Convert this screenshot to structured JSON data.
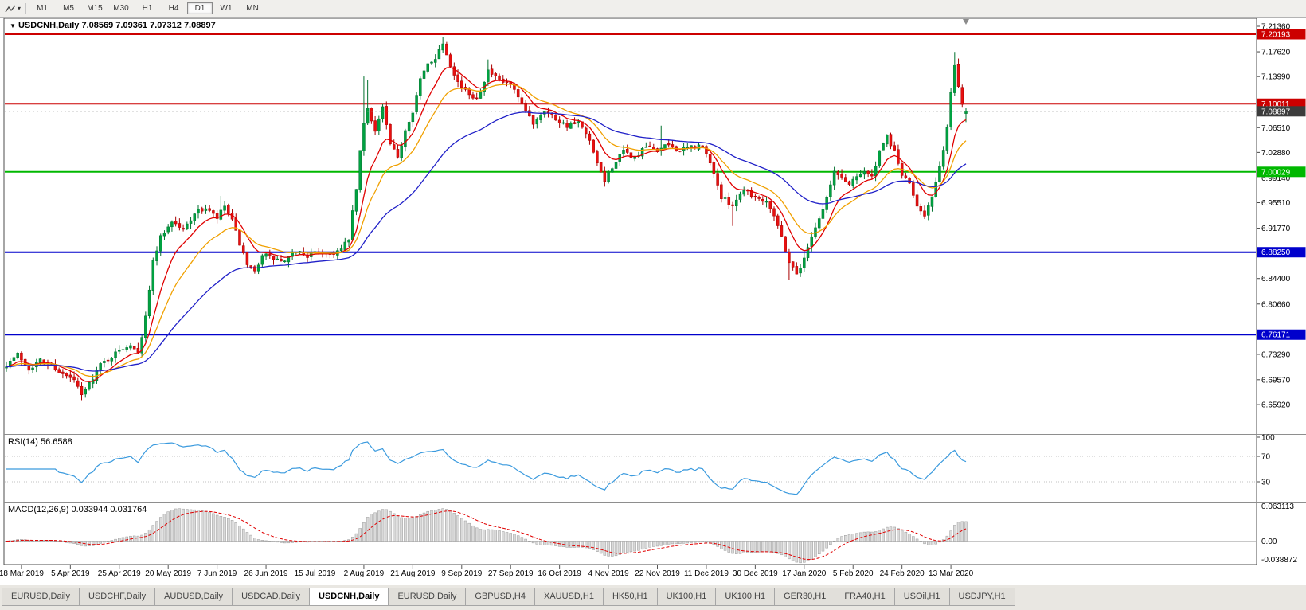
{
  "toolbar": {
    "timeframes": [
      "M1",
      "M5",
      "M15",
      "M30",
      "H1",
      "H4",
      "D1",
      "W1",
      "MN"
    ],
    "active_timeframe": "D1"
  },
  "chart": {
    "title": {
      "symbol_period": "USDCNH,Daily",
      "open": "7.08569",
      "high": "7.09361",
      "low": "7.07312",
      "close": "7.08897"
    },
    "y_axis_labels": [
      "7.21360",
      "7.17620",
      "7.13990",
      "7.06510",
      "7.02880",
      "6.99140",
      "6.95510",
      "6.91770",
      "6.84400",
      "6.80660",
      "6.73290",
      "6.69570",
      "6.65920"
    ],
    "x_axis_labels": [
      "18 Mar 2019",
      "5 Apr 2019",
      "25 Apr 2019",
      "20 May 2019",
      "7 Jun 2019",
      "26 Jun 2019",
      "15 Jul 2019",
      "2 Aug 2019",
      "21 Aug 2019",
      "9 Sep 2019",
      "27 Sep 2019",
      "16 Oct 2019",
      "4 Nov 2019",
      "22 Nov 2019",
      "11 Dec 2019",
      "30 Dec 2019",
      "17 Jan 2020",
      "5 Feb 2020",
      "24 Feb 2020",
      "13 Mar 2020"
    ]
  },
  "rsi_panel": {
    "label": "RSI(14)",
    "value_text": "56.6588",
    "axis_labels": [
      "100",
      "70",
      "30"
    ],
    "line_color": "#3a9ade"
  },
  "macd_panel": {
    "label": "MACD(12,26,9)",
    "values_text": "0.033944 0.031764",
    "axis_labels": [
      "0.063113",
      "0.00",
      "-0.038872"
    ],
    "histogram_color": "#dadada",
    "signal_color": "#e00000"
  },
  "tabs": {
    "items": [
      "EURUSD,Daily",
      "USDCHF,Daily",
      "AUDUSD,Daily",
      "USDCAD,Daily",
      "USDCNH,Daily",
      "EURUSD,Daily",
      "GBPUSD,H4",
      "XAUUSD,H1",
      "HK50,H1",
      "UK100,H1",
      "UK100,H1",
      "GER30,H1",
      "FRA40,H1",
      "USOil,H1",
      "USDJPY,H1"
    ],
    "active_index": 4
  },
  "icons": {
    "chart-tool-icon": "zigzag-line",
    "dropdown-caret-icon": "▾",
    "collapse-arrow-icon": "▼",
    "shift-marker-icon": "triangle-down"
  },
  "chart_data": {
    "type": "candlestick",
    "symbol": "USDCNH",
    "timeframe": "Daily",
    "bar_count": 256,
    "ylim": [
      6.6173,
      7.2241
    ],
    "x_tick_bar_index_start": 4,
    "x_tick_bar_step": 13,
    "last_bar": {
      "open": 7.08569,
      "high": 7.09361,
      "low": 7.07312,
      "close": 7.08897
    },
    "up_color": "#00a241",
    "up_stroke": "#00712d",
    "down_color": "#e81010",
    "down_stroke": "#a80000",
    "noise_seed": 7,
    "close_anchors": [
      [
        0,
        6.718
      ],
      [
        3,
        6.733
      ],
      [
        6,
        6.712
      ],
      [
        9,
        6.724
      ],
      [
        12,
        6.718
      ],
      [
        15,
        6.703
      ],
      [
        18,
        6.695
      ],
      [
        20,
        6.672
      ],
      [
        22,
        6.69
      ],
      [
        25,
        6.718
      ],
      [
        28,
        6.73
      ],
      [
        31,
        6.742
      ],
      [
        33,
        6.748
      ],
      [
        35,
        6.738
      ],
      [
        36,
        6.76
      ],
      [
        37,
        6.79
      ],
      [
        38,
        6.825
      ],
      [
        39,
        6.87
      ],
      [
        41,
        6.905
      ],
      [
        44,
        6.928
      ],
      [
        47,
        6.915
      ],
      [
        50,
        6.94
      ],
      [
        53,
        6.947
      ],
      [
        56,
        6.932
      ],
      [
        58,
        6.95
      ],
      [
        60,
        6.928
      ],
      [
        62,
        6.895
      ],
      [
        64,
        6.862
      ],
      [
        66,
        6.853
      ],
      [
        68,
        6.88
      ],
      [
        71,
        6.873
      ],
      [
        74,
        6.868
      ],
      [
        77,
        6.885
      ],
      [
        80,
        6.877
      ],
      [
        83,
        6.883
      ],
      [
        86,
        6.88
      ],
      [
        89,
        6.886
      ],
      [
        91,
        6.902
      ],
      [
        92,
        6.94
      ],
      [
        93,
        6.975
      ],
      [
        94,
        7.03
      ],
      [
        95,
        7.07
      ],
      [
        96,
        7.095
      ],
      [
        98,
        7.06
      ],
      [
        100,
        7.095
      ],
      [
        102,
        7.04
      ],
      [
        104,
        7.02
      ],
      [
        106,
        7.062
      ],
      [
        108,
        7.09
      ],
      [
        110,
        7.135
      ],
      [
        112,
        7.158
      ],
      [
        114,
        7.168
      ],
      [
        116,
        7.19
      ],
      [
        118,
        7.158
      ],
      [
        120,
        7.132
      ],
      [
        122,
        7.118
      ],
      [
        125,
        7.108
      ],
      [
        128,
        7.148
      ],
      [
        131,
        7.133
      ],
      [
        134,
        7.128
      ],
      [
        137,
        7.098
      ],
      [
        140,
        7.072
      ],
      [
        143,
        7.092
      ],
      [
        146,
        7.078
      ],
      [
        149,
        7.068
      ],
      [
        152,
        7.072
      ],
      [
        155,
        7.045
      ],
      [
        157,
        7.01
      ],
      [
        159,
        6.988
      ],
      [
        161,
        7.008
      ],
      [
        164,
        7.03
      ],
      [
        167,
        7.02
      ],
      [
        170,
        7.037
      ],
      [
        173,
        7.032
      ],
      [
        176,
        7.04
      ],
      [
        179,
        7.031
      ],
      [
        182,
        7.037
      ],
      [
        185,
        7.038
      ],
      [
        188,
        7.0
      ],
      [
        190,
        6.962
      ],
      [
        193,
        6.952
      ],
      [
        196,
        6.976
      ],
      [
        199,
        6.963
      ],
      [
        202,
        6.958
      ],
      [
        204,
        6.938
      ],
      [
        206,
        6.905
      ],
      [
        208,
        6.868
      ],
      [
        210,
        6.852
      ],
      [
        212,
        6.872
      ],
      [
        214,
        6.908
      ],
      [
        216,
        6.932
      ],
      [
        218,
        6.962
      ],
      [
        220,
        7.0
      ],
      [
        222,
        6.992
      ],
      [
        224,
        6.982
      ],
      [
        226,
        6.996
      ],
      [
        228,
        7.002
      ],
      [
        230,
        6.992
      ],
      [
        232,
        7.028
      ],
      [
        234,
        7.052
      ],
      [
        236,
        7.03
      ],
      [
        238,
        6.996
      ],
      [
        240,
        6.982
      ],
      [
        242,
        6.952
      ],
      [
        244,
        6.938
      ],
      [
        246,
        6.962
      ],
      [
        248,
        7.005
      ],
      [
        250,
        7.065
      ],
      [
        251,
        7.115
      ],
      [
        252,
        7.158
      ],
      [
        253,
        7.128
      ],
      [
        254,
        7.1
      ],
      [
        255,
        7.089
      ]
    ],
    "wick_events": [
      {
        "i": 57,
        "h": 6.965
      },
      {
        "i": 95,
        "h": 7.14
      },
      {
        "i": 96,
        "h": 7.135
      },
      {
        "i": 116,
        "h": 7.198
      },
      {
        "i": 128,
        "h": 7.165
      },
      {
        "i": 174,
        "h": 7.068
      },
      {
        "i": 193,
        "l": 6.921
      },
      {
        "i": 208,
        "l": 6.842
      },
      {
        "i": 252,
        "h": 7.176
      }
    ],
    "moving_averages": [
      {
        "period": 9,
        "color": "#e00000"
      },
      {
        "period": 18,
        "color": "#f0a000"
      },
      {
        "period": 45,
        "color": "#2020c8"
      }
    ],
    "horizontal_levels": [
      {
        "price": 7.20193,
        "color": "#cc0000"
      },
      {
        "price": 7.10011,
        "color": "#cc0000"
      },
      {
        "price": 7.00029,
        "color": "#00b800"
      },
      {
        "price": 6.8825,
        "color": "#0000cc"
      },
      {
        "price": 6.76171,
        "color": "#0000cc"
      }
    ],
    "current_price": {
      "price": 7.08897,
      "line_color": "#888888",
      "badge_color": "#3c3c3c"
    },
    "indicators": [
      {
        "name": "RSI",
        "period": 14,
        "value": 56.6588,
        "levels": [
          100,
          70,
          30
        ]
      },
      {
        "name": "MACD",
        "params": [
          12,
          26,
          9
        ],
        "main": 0.033944,
        "signal": 0.031764,
        "axis_values": [
          0.063113,
          0.0,
          -0.038872
        ]
      }
    ]
  }
}
